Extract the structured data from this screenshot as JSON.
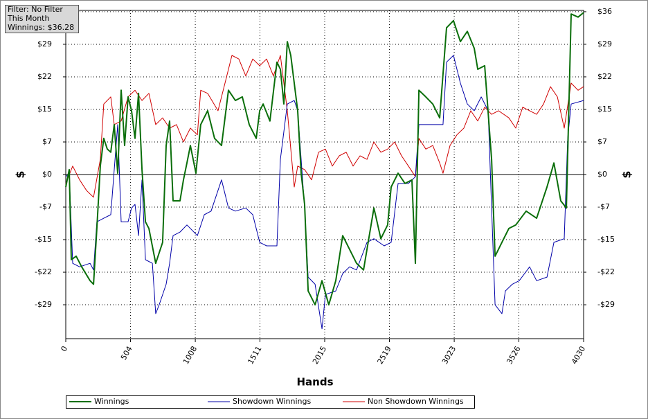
{
  "chart_data": {
    "type": "line",
    "annotations": [
      "Filter: No Filter",
      "This Month",
      "Winnings: $36.28"
    ],
    "xlabel": "Hands",
    "ylabel": "$",
    "xlim": [
      0,
      4030
    ],
    "xticks": [
      0,
      504,
      1008,
      1511,
      2015,
      2519,
      3023,
      3526,
      4030
    ],
    "ylim": [
      -36.8,
      36.8
    ],
    "yticks": [
      {
        "value": -29.2,
        "label": "-$29"
      },
      {
        "value": -21.9,
        "label": "-$22"
      },
      {
        "value": -14.6,
        "label": "-$15"
      },
      {
        "value": -7.3,
        "label": "-$7"
      },
      {
        "value": 0,
        "label": "$0"
      },
      {
        "value": 7.3,
        "label": "$7"
      },
      {
        "value": 14.6,
        "label": "$15"
      },
      {
        "value": 21.9,
        "label": "$22"
      },
      {
        "value": 29.2,
        "label": "$29"
      },
      {
        "value": 36.5,
        "label": "$36"
      }
    ],
    "grid": true,
    "legend": "bottom",
    "series": [
      {
        "name": "Winnings",
        "color": "#0a6e0a",
        "x": [
          0,
          27,
          43,
          81,
          124,
          189,
          216,
          242,
          269,
          296,
          323,
          350,
          377,
          404,
          431,
          458,
          485,
          512,
          539,
          566,
          593,
          620,
          647,
          700,
          754,
          781,
          808,
          835,
          889,
          916,
          943,
          970,
          1013,
          1050,
          1104,
          1158,
          1212,
          1266,
          1320,
          1374,
          1428,
          1482,
          1509,
          1536,
          1589,
          1643,
          1670,
          1697,
          1724,
          1751,
          1805,
          1832,
          1859,
          1886,
          1940,
          1994,
          2047,
          2101,
          2155,
          2209,
          2263,
          2317,
          2398,
          2452,
          2505,
          2532,
          2586,
          2640,
          2694,
          2721,
          2748,
          2802,
          2856,
          2910,
          2963,
          3017,
          3071,
          3125,
          3179,
          3206,
          3260,
          3314,
          3341,
          3394,
          3448,
          3502,
          3583,
          3664,
          3745,
          3799,
          3852,
          3896,
          3933,
          3987,
          4030
        ],
        "values": [
          -2.8,
          1.1,
          -19.1,
          -18.3,
          -20.7,
          -23.8,
          -24.6,
          -12.1,
          1.9,
          8.1,
          5.7,
          5.0,
          11.2,
          0.3,
          18.9,
          6.5,
          17.4,
          14.3,
          8.1,
          18.2,
          1.1,
          -10.6,
          -12.1,
          -19.9,
          -15.2,
          6.5,
          12.0,
          -5.9,
          -5.9,
          -1.2,
          2.6,
          6.5,
          0.3,
          11.2,
          14.3,
          8.1,
          6.5,
          18.9,
          16.6,
          17.4,
          11.2,
          8.1,
          14.3,
          15.8,
          12.0,
          25.2,
          23.6,
          15.8,
          29.8,
          26.7,
          14.3,
          0.3,
          -6.7,
          -26.1,
          -29.2,
          -23.8,
          -29.2,
          -23.8,
          -13.7,
          -16.8,
          -19.9,
          -21.4,
          -7.5,
          -14.4,
          -11.3,
          -2.8,
          0.3,
          -2.0,
          -1.2,
          -19.9,
          18.9,
          17.4,
          15.8,
          12.7,
          32.9,
          34.5,
          29.8,
          32.1,
          28.3,
          23.6,
          24.4,
          3.4,
          -18.3,
          -15.2,
          -12.1,
          -11.3,
          -8.2,
          -9.8,
          -2.8,
          2.6,
          -5.9,
          -7.5,
          36.0,
          35.3,
          36.3
        ]
      },
      {
        "name": "Showdown Winnings",
        "color": "#0000a8",
        "x": [
          0,
          27,
          54,
          108,
          189,
          216,
          242,
          296,
          350,
          404,
          431,
          485,
          512,
          539,
          566,
          593,
          620,
          674,
          700,
          727,
          781,
          808,
          835,
          889,
          943,
          1024,
          1078,
          1131,
          1212,
          1266,
          1320,
          1401,
          1455,
          1509,
          1563,
          1643,
          1670,
          1724,
          1778,
          1805,
          1832,
          1859,
          1886,
          1940,
          1994,
          2021,
          2101,
          2155,
          2209,
          2263,
          2344,
          2398,
          2478,
          2532,
          2586,
          2667,
          2721,
          2748,
          2936,
          2963,
          3017,
          3071,
          3125,
          3179,
          3233,
          3287,
          3314,
          3341,
          3394,
          3421,
          3475,
          3529,
          3610,
          3664,
          3745,
          3799,
          3879,
          3906,
          3933,
          4030
        ],
        "values": [
          -0.5,
          0.3,
          -19.9,
          -20.7,
          -19.9,
          -21.4,
          -10.6,
          -9.8,
          -9.0,
          11.2,
          -10.6,
          -10.6,
          -7.5,
          -6.7,
          -13.7,
          -1.2,
          -19.1,
          -19.9,
          -31.2,
          -29.2,
          -24.6,
          -19.9,
          -13.7,
          -12.9,
          -11.3,
          -13.7,
          -9.0,
          -8.2,
          -1.2,
          -7.5,
          -8.2,
          -7.5,
          -9.0,
          -15.2,
          -16.0,
          -16.0,
          3.4,
          15.8,
          16.6,
          14.3,
          3.4,
          -7.5,
          -23.0,
          -24.6,
          -34.6,
          -26.9,
          -26.1,
          -22.2,
          -20.7,
          -21.4,
          -15.2,
          -14.4,
          -16.0,
          -15.2,
          -2.0,
          -2.0,
          -0.5,
          11.2,
          11.2,
          25.2,
          26.7,
          20.5,
          15.8,
          14.3,
          17.4,
          14.3,
          -7.5,
          -29.2,
          -31.2,
          -26.1,
          -24.6,
          -23.8,
          -20.7,
          -23.8,
          -23.0,
          -15.2,
          -14.4,
          8.1,
          15.8,
          16.6
        ]
      },
      {
        "name": "Non Showdown Winnings",
        "color": "#d00000",
        "x": [
          0,
          54,
          108,
          162,
          216,
          269,
          296,
          350,
          377,
          431,
          485,
          539,
          593,
          647,
          700,
          754,
          808,
          862,
          916,
          970,
          1024,
          1050,
          1104,
          1185,
          1239,
          1293,
          1347,
          1401,
          1455,
          1509,
          1563,
          1616,
          1670,
          1724,
          1778,
          1805,
          1859,
          1913,
          1967,
          2021,
          2074,
          2128,
          2182,
          2236,
          2290,
          2344,
          2398,
          2452,
          2505,
          2559,
          2613,
          2667,
          2721,
          2748,
          2802,
          2856,
          2910,
          2936,
          2990,
          3044,
          3098,
          3152,
          3206,
          3260,
          3314,
          3368,
          3448,
          3502,
          3556,
          3610,
          3664,
          3718,
          3772,
          3826,
          3879,
          3933,
          3987,
          4030
        ],
        "values": [
          -2.0,
          1.9,
          -1.2,
          -3.6,
          -5.1,
          3.4,
          15.8,
          17.4,
          11.2,
          12.0,
          17.4,
          18.9,
          16.6,
          18.2,
          11.2,
          12.7,
          10.4,
          11.2,
          7.3,
          10.4,
          8.9,
          18.9,
          18.2,
          14.3,
          20.5,
          26.7,
          25.9,
          22.1,
          25.9,
          24.4,
          25.9,
          22.1,
          26.7,
          14.3,
          -2.8,
          1.9,
          1.1,
          -1.2,
          5.0,
          5.7,
          1.9,
          4.2,
          5.0,
          1.9,
          4.2,
          3.4,
          7.3,
          5.0,
          5.7,
          7.3,
          4.2,
          1.9,
          -0.5,
          8.1,
          5.7,
          6.5,
          2.6,
          0.3,
          6.5,
          8.9,
          10.4,
          14.3,
          12.0,
          15.1,
          13.5,
          14.3,
          12.7,
          10.4,
          15.1,
          14.3,
          13.5,
          15.8,
          19.7,
          17.4,
          10.4,
          20.5,
          18.9,
          19.7
        ]
      }
    ]
  }
}
